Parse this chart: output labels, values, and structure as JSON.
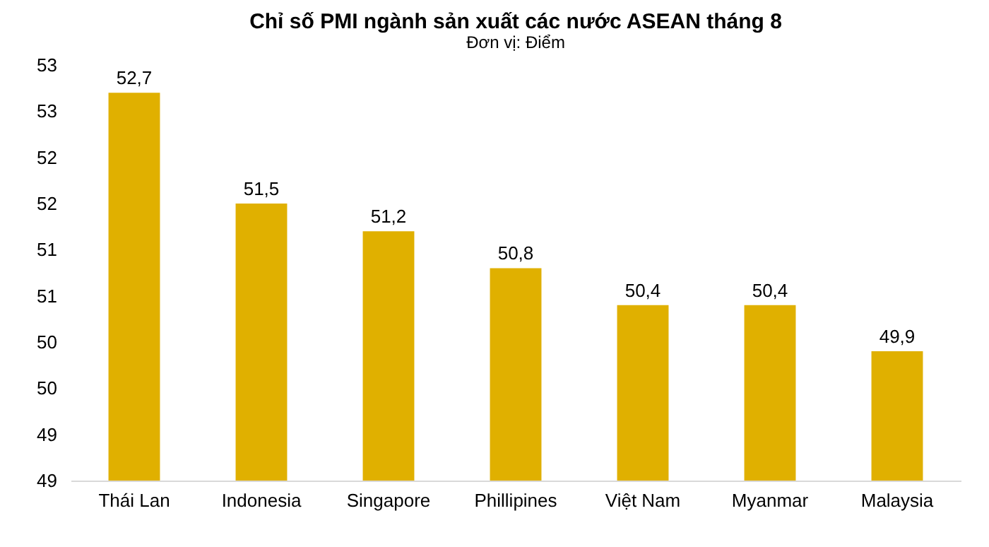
{
  "chart_data": {
    "type": "bar",
    "title": "Chỉ số PMI ngành sản xuất các nước ASEAN tháng 8",
    "subtitle": "Đơn vị: Điểm",
    "categories": [
      "Thái Lan",
      "Indonesia",
      "Singapore",
      "Phillipines",
      "Việt Nam",
      "Myanmar",
      "Malaysia"
    ],
    "values": [
      52.7,
      51.5,
      51.2,
      50.8,
      50.4,
      50.4,
      49.9
    ],
    "value_labels": [
      "52,7",
      "51,5",
      "51,2",
      "50,8",
      "50,4",
      "50,4",
      "49,9"
    ],
    "color": "#e0b000",
    "ylim": [
      48.5,
      53
    ],
    "yticks": [
      {
        "value": 48.5,
        "label": "49"
      },
      {
        "value": 49,
        "label": "49"
      },
      {
        "value": 49.5,
        "label": "50"
      },
      {
        "value": 50,
        "label": "50"
      },
      {
        "value": 50.5,
        "label": "51"
      },
      {
        "value": 51,
        "label": "51"
      },
      {
        "value": 51.5,
        "label": "52"
      },
      {
        "value": 52,
        "label": "52"
      },
      {
        "value": 52.5,
        "label": "53"
      },
      {
        "value": 53,
        "label": "53"
      }
    ],
    "grid": false
  }
}
